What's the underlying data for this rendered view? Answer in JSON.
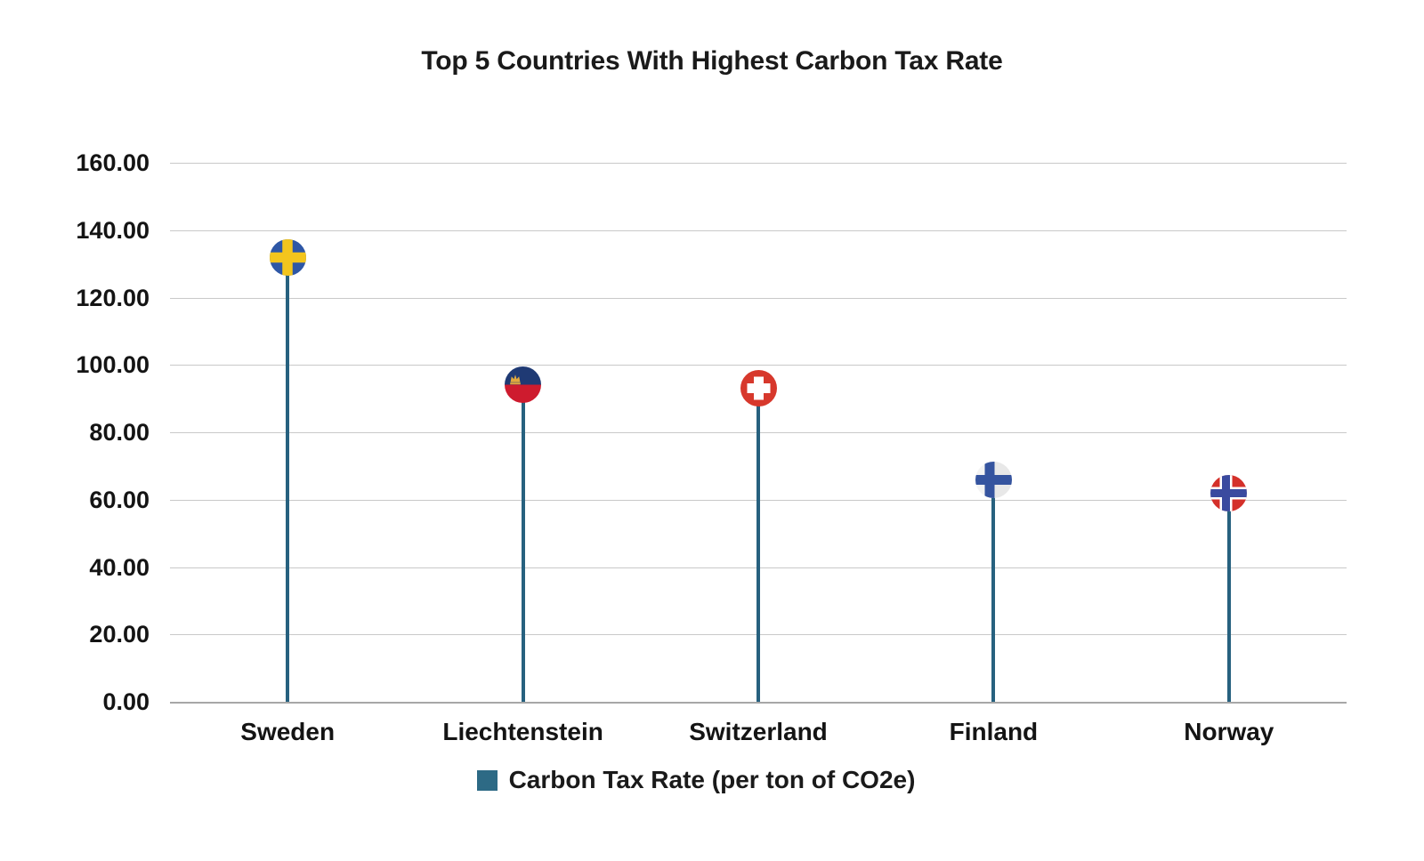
{
  "chart_data": {
    "type": "lollipop",
    "title": "Top 5 Countries With Highest Carbon Tax Rate",
    "categories": [
      "Sweden",
      "Liechtenstein",
      "Switzerland",
      "Finland",
      "Norway"
    ],
    "values": [
      132,
      94,
      93,
      66,
      62
    ],
    "series": [
      {
        "name": "Carbon Tax Rate (per ton of CO2e)",
        "values": [
          132,
          94,
          93,
          66,
          62
        ]
      }
    ],
    "xlabel": "",
    "ylabel": "",
    "ylim": [
      0,
      160
    ],
    "ytick_step": 20,
    "ytick_labels": [
      "0.00",
      "20.00",
      "40.00",
      "60.00",
      "80.00",
      "100.00",
      "120.00",
      "140.00",
      "160.00"
    ],
    "grid": true,
    "legend_position": "bottom",
    "marker_style": "country-flag-circle"
  },
  "legend": {
    "label": "Carbon Tax Rate (per ton of CO2e)",
    "swatch_color": "#2d6a85"
  },
  "colors": {
    "stem": "#27617f",
    "gridline": "#c9c9c9",
    "axis_line": "#a7a7a7",
    "text": "#1a1a1a",
    "background": "#ffffff"
  },
  "flags": {
    "Sweden": {
      "icon": "sweden-flag-icon",
      "bg": "#2e57a6",
      "cross": "#f3c51d"
    },
    "Liechtenstein": {
      "icon": "liechtenstein-flag-icon",
      "top": "#1f3a74",
      "bottom": "#ce1b2e",
      "crown": "#e2a93e"
    },
    "Switzerland": {
      "icon": "switzerland-flag-icon",
      "bg": "#d7382c",
      "cross": "#ffffff"
    },
    "Finland": {
      "icon": "finland-flag-icon",
      "bg": "#f3f3f3",
      "shade": "#e8e8e8",
      "cross": "#35549f"
    },
    "Norway": {
      "icon": "norway-flag-icon",
      "bg": "#d4302a",
      "cross": "#3a4a9f",
      "fimbriation": "#ffffff"
    }
  }
}
